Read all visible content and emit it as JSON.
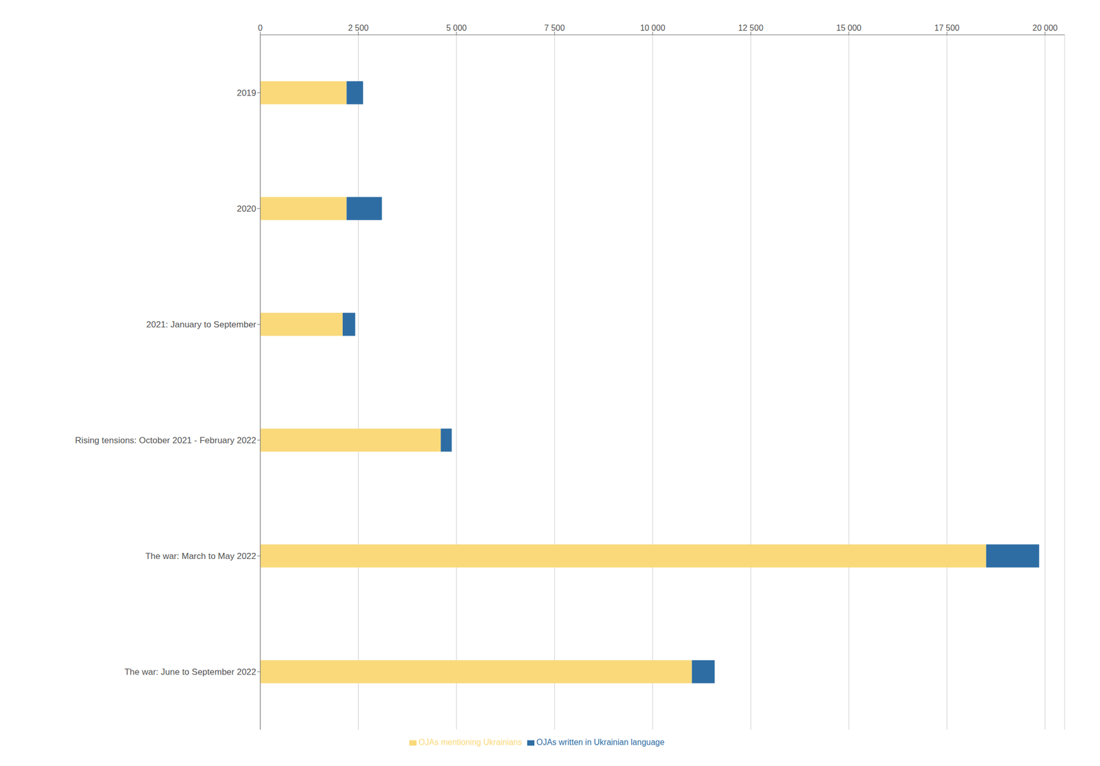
{
  "chart_data": {
    "type": "bar",
    "orientation": "horizontal",
    "stacked": true,
    "categories": [
      "2019",
      "2020",
      "2021: January to September",
      "Rising tensions: October 2021 - February 2022",
      "The war: March to May 2022",
      "The war: June to September 2022"
    ],
    "series": [
      {
        "name": "OJAs mentioning Ukrainians",
        "color": "#F9D97A",
        "values": [
          2200,
          2200,
          2100,
          4600,
          18500,
          11000
        ]
      },
      {
        "name": "OJAs written in Ukrainian language",
        "color": "#2E6DA4",
        "values": [
          420,
          900,
          320,
          280,
          1350,
          580
        ]
      }
    ],
    "xlim": [
      0,
      20500
    ],
    "xticks": [
      0,
      {
        "value": 2500,
        "label": "2 500"
      },
      {
        "value": 5000,
        "label": "5 000"
      },
      {
        "value": 7500,
        "label": "7 500"
      },
      {
        "value": 10000,
        "label": "10 000"
      },
      {
        "value": 12500,
        "label": "12 500"
      },
      {
        "value": 15000,
        "label": "15 000"
      },
      {
        "value": 17500,
        "label": "17 500"
      },
      {
        "value": 20000,
        "label": "20 000"
      }
    ],
    "grid": true,
    "legend": "bottom"
  }
}
